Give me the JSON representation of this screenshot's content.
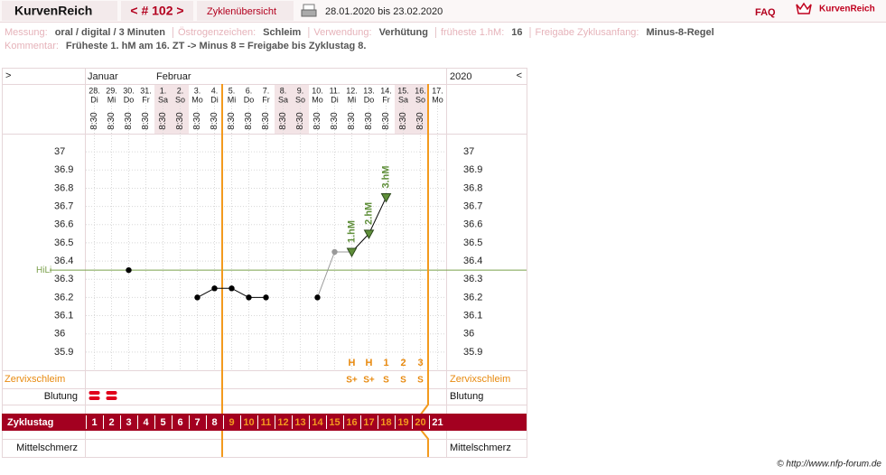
{
  "header": {
    "brand": "KurvenReich",
    "cycle_nav": "< # 102 >",
    "overview": "Zyklenübersicht",
    "date_range": "28.01.2020 bis 23.02.2020",
    "faq": "FAQ",
    "logo_text": "KurvenReich"
  },
  "info": {
    "rows": [
      [
        {
          "label": "Messung:",
          "value": "oral / digital / 3 Minuten"
        },
        {
          "label": "Östrogenzeichen:",
          "value": "Schleim"
        },
        {
          "label": "Verwendung:",
          "value": "Verhütung"
        },
        {
          "label": "früheste 1.hM:",
          "value": "16"
        },
        {
          "label": "Freigabe Zyklusanfang:",
          "value": "Minus-8-Regel"
        }
      ],
      [
        {
          "label": "Kommentar:",
          "value": "Früheste 1. hM am 16. ZT -> Minus 8 = Freigabe bis Zyklustag 8."
        }
      ]
    ]
  },
  "chart_data": {
    "type": "line",
    "nav_left": ">",
    "nav_right": "<",
    "year": "2020",
    "month_labels": [
      "Januar",
      null,
      null,
      null,
      "Februar",
      null,
      null,
      null,
      null,
      null,
      null,
      null,
      null,
      null,
      null,
      null,
      null,
      null,
      null,
      null,
      null
    ],
    "dates": [
      "28.",
      "29.",
      "30.",
      "31.",
      "1.",
      "2.",
      "3.",
      "4.",
      "5.",
      "6.",
      "7.",
      "8.",
      "9.",
      "10.",
      "11.",
      "12.",
      "13.",
      "14.",
      "15.",
      "16.",
      "17."
    ],
    "weekdays": [
      "Di",
      "Mi",
      "Do",
      "Fr",
      "Sa",
      "So",
      "Mo",
      "Di",
      "Mi",
      "Do",
      "Fr",
      "Sa",
      "So",
      "Mo",
      "Di",
      "Mi",
      "Do",
      "Fr",
      "Sa",
      "So",
      "Mo"
    ],
    "times": [
      "8:30",
      "8:30",
      "8:30",
      "8:30",
      "8:30",
      "8:30",
      "8:30",
      "8:30",
      "8:30",
      "8:30",
      "8:30",
      "8:30",
      "8:30",
      "8:30",
      "8:30",
      "8:30",
      "8:30",
      "8:30",
      "8:30",
      "8:30",
      null
    ],
    "values": [
      null,
      null,
      36.35,
      null,
      null,
      null,
      36.2,
      36.25,
      36.25,
      36.2,
      36.2,
      null,
      null,
      36.2,
      36.45,
      36.45,
      36.55,
      36.75,
      null,
      null,
      null
    ],
    "color": "#000000",
    "excluded": [
      14
    ],
    "excluded_color": "#999999",
    "value_annotations": [
      null,
      null,
      null,
      null,
      null,
      null,
      null,
      null,
      null,
      null,
      null,
      null,
      null,
      null,
      null,
      "1.hM",
      "2.hM",
      "3.hM",
      null,
      null,
      null
    ],
    "annotation_color": "#5f8f3a",
    "ylim": [
      35.8,
      37.1
    ],
    "yticks": [
      35.9,
      36,
      36.1,
      36.2,
      36.3,
      36.4,
      36.5,
      36.6,
      36.7,
      36.8,
      36.9,
      37
    ],
    "grid": true,
    "hili": {
      "label": "HiLi",
      "value": 36.35,
      "color": "#7aa04a"
    },
    "cervix_label": "Zervixschleim",
    "peak": [
      null,
      null,
      null,
      null,
      null,
      null,
      null,
      null,
      null,
      null,
      null,
      null,
      null,
      null,
      null,
      "H",
      "H",
      "1",
      "2",
      "3",
      null
    ],
    "cervix": [
      null,
      null,
      null,
      null,
      null,
      null,
      null,
      null,
      null,
      null,
      null,
      null,
      null,
      null,
      null,
      "S+",
      "S+",
      "S",
      "S",
      "S",
      null
    ],
    "bleeding_label": "Blutung",
    "bleeding": [
      true,
      true,
      false,
      false,
      false,
      false,
      false,
      false,
      false,
      false,
      false,
      false,
      false,
      false,
      false,
      false,
      false,
      false,
      false,
      false,
      false
    ],
    "cycle_day_label": "Zyklustag",
    "cycle_days": [
      1,
      2,
      3,
      4,
      5,
      6,
      7,
      8,
      9,
      10,
      11,
      12,
      13,
      14,
      15,
      16,
      17,
      18,
      19,
      20,
      21
    ],
    "cycle_day_colors": [
      "#ffffff",
      "#ffffff",
      "#ffffff",
      "#ffffff",
      "#ffffff",
      "#ffffff",
      "#ffffff",
      "#ffffff",
      "#f39a1e",
      "#f39a1e",
      "#f39a1e",
      "#f39a1e",
      "#f39a1e",
      "#f39a1e",
      "#f39a1e",
      "#f39a1e",
      "#f39a1e",
      "#f39a1e",
      "#f39a1e",
      "#f39a1e",
      "#ffffff"
    ],
    "pain_label": "Mittelschmerz"
  },
  "footer": "© http://www.nfp-forum.de"
}
